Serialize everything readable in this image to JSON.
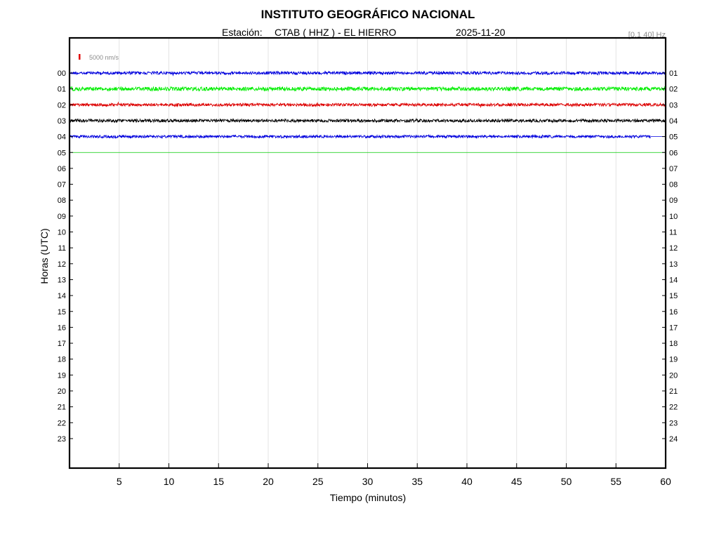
{
  "header": {
    "title": "INSTITUTO GEOGRÁFICO NACIONAL",
    "station_prefix": "Estación:",
    "station": "CTAB ( HHZ ) - EL HIERRO",
    "date": "2025-11-20",
    "filter": "[0.1 40] Hz"
  },
  "scale": {
    "label": "5000 nm/s",
    "color": "#e00000"
  },
  "chart_data": {
    "type": "line",
    "xlabel": "Tiempo (minutos)",
    "ylabel": "Horas (UTC)",
    "xlim": [
      0,
      60
    ],
    "x_ticks": [
      "5",
      "10",
      "15",
      "20",
      "25",
      "30",
      "35",
      "40",
      "45",
      "50",
      "55",
      "60"
    ],
    "left_hour_labels": [
      "00",
      "01",
      "02",
      "03",
      "04",
      "05",
      "06",
      "07",
      "08",
      "09",
      "10",
      "11",
      "12",
      "13",
      "14",
      "15",
      "16",
      "17",
      "18",
      "19",
      "20",
      "21",
      "22",
      "23"
    ],
    "right_hour_labels": [
      "01",
      "02",
      "03",
      "04",
      "05",
      "06",
      "07",
      "08",
      "09",
      "10",
      "11",
      "12",
      "13",
      "14",
      "15",
      "16",
      "17",
      "18",
      "19",
      "20",
      "21",
      "22",
      "23",
      "24"
    ],
    "traces": [
      {
        "hour": 0,
        "color": "#0000dd",
        "end_minute": 60,
        "amplitude": 1.0
      },
      {
        "hour": 1,
        "color": "#00ee00",
        "end_minute": 60,
        "amplitude": 1.3
      },
      {
        "hour": 2,
        "color": "#dd0000",
        "end_minute": 60,
        "amplitude": 1.0
      },
      {
        "hour": 3,
        "color": "#000000",
        "end_minute": 60,
        "amplitude": 1.0
      },
      {
        "hour": 4,
        "color": "#0000dd",
        "end_minute": 58.5,
        "amplitude": 0.9
      }
    ],
    "flat_lines": [
      {
        "hour": 4,
        "color": "#0000dd",
        "start_minute": 58.5,
        "end_minute": 60
      },
      {
        "hour": 5,
        "color": "#00cc00",
        "start_minute": 0,
        "end_minute": 60
      }
    ],
    "grid": true
  }
}
